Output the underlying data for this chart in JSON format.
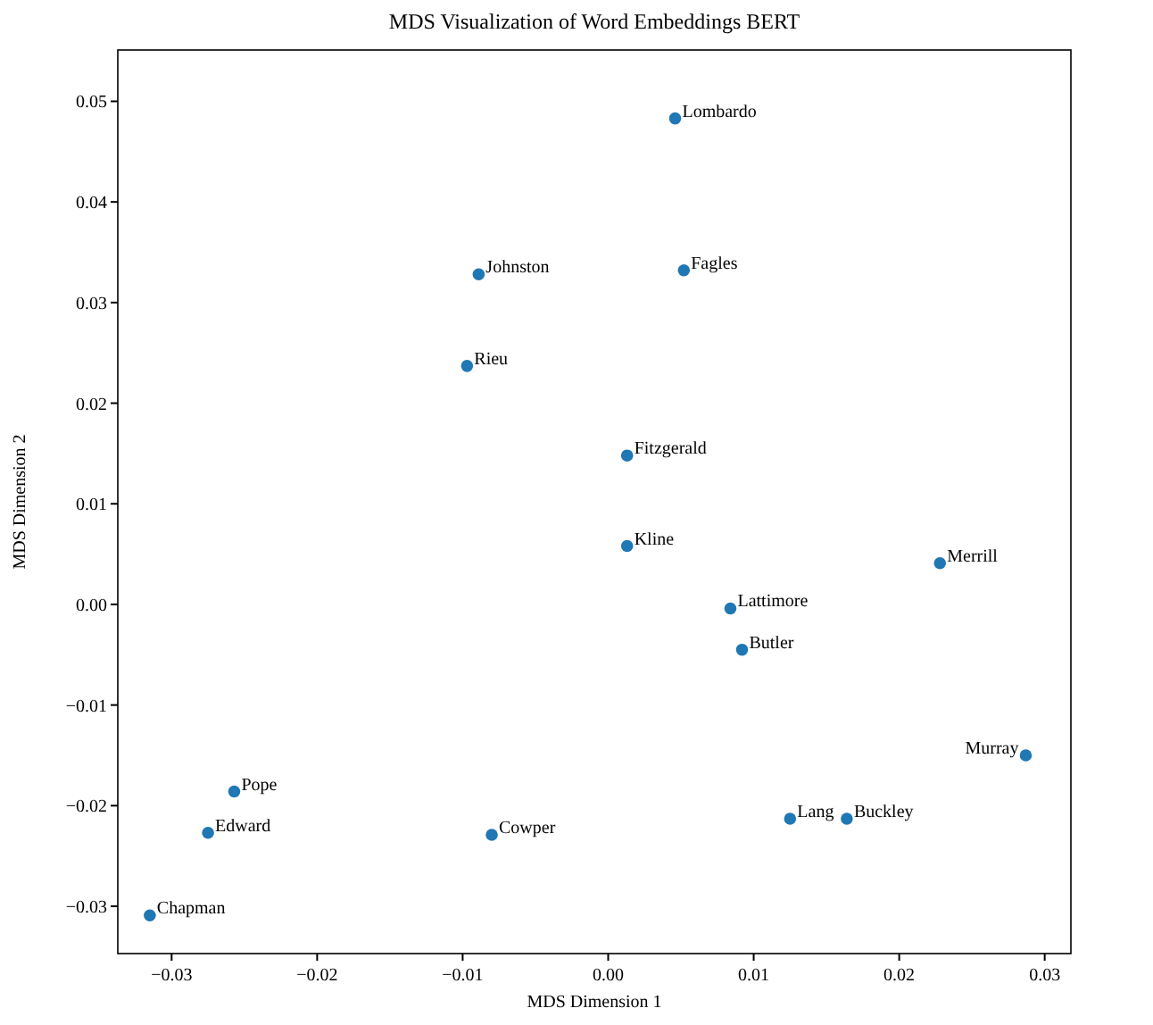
{
  "chart_data": {
    "type": "scatter",
    "title": "MDS Visualization of Word Embeddings BERT",
    "xlabel": "MDS Dimension 1",
    "ylabel": "MDS Dimension 2",
    "x": [
      0.0046,
      -0.0089,
      0.0052,
      -0.0097,
      0.0013,
      0.0013,
      0.0228,
      0.0084,
      0.0092,
      0.0287,
      -0.0257,
      -0.0275,
      -0.008,
      0.0125,
      0.0164,
      -0.0315
    ],
    "series": [
      {
        "color": "#1f77b4",
        "values": [
          0.0483,
          0.0328,
          0.0332,
          0.0237,
          0.0148,
          0.0058,
          0.0041,
          -0.0004,
          -0.0045,
          -0.015,
          -0.0186,
          -0.0227,
          -0.0229,
          -0.0213,
          -0.0213,
          -0.0309
        ]
      }
    ],
    "annotations": [
      {
        "text": "Lombardo",
        "x": 0.0046,
        "y": 0.0483
      },
      {
        "text": "Johnston",
        "x": -0.0089,
        "y": 0.0328
      },
      {
        "text": "Fagles",
        "x": 0.0052,
        "y": 0.0332
      },
      {
        "text": "Rieu",
        "x": -0.0097,
        "y": 0.0237
      },
      {
        "text": "Fitzgerald",
        "x": 0.0013,
        "y": 0.0148
      },
      {
        "text": "Kline",
        "x": 0.0013,
        "y": 0.0058
      },
      {
        "text": "Merrill",
        "x": 0.0228,
        "y": 0.0041
      },
      {
        "text": "Lattimore",
        "x": 0.0084,
        "y": -0.0004
      },
      {
        "text": "Butler",
        "x": 0.0092,
        "y": -0.0045
      },
      {
        "text": "Murray",
        "x": 0.0287,
        "y": -0.015
      },
      {
        "text": "Pope",
        "x": -0.0257,
        "y": -0.0186
      },
      {
        "text": "Edward",
        "x": -0.0275,
        "y": -0.0227
      },
      {
        "text": "Cowper",
        "x": -0.008,
        "y": -0.0229
      },
      {
        "text": "Lang",
        "x": 0.0125,
        "y": -0.0213
      },
      {
        "text": "Buckley",
        "x": 0.0164,
        "y": -0.0213
      },
      {
        "text": "Chapman",
        "x": -0.0315,
        "y": -0.0309
      }
    ],
    "xlim": [
      -0.0337,
      0.0318
    ],
    "ylim": [
      -0.0347,
      0.0551
    ],
    "xticks": [
      {
        "value": -0.03,
        "label": "−0.03"
      },
      {
        "value": -0.02,
        "label": "−0.02"
      },
      {
        "value": -0.01,
        "label": "−0.01"
      },
      {
        "value": 0,
        "label": "0.00"
      },
      {
        "value": 0.01,
        "label": "0.01"
      },
      {
        "value": 0.02,
        "label": "0.02"
      },
      {
        "value": 0.03,
        "label": "0.03"
      }
    ],
    "yticks": [
      {
        "value": -0.03,
        "label": "−0.03"
      },
      {
        "value": -0.02,
        "label": "−0.02"
      },
      {
        "value": -0.01,
        "label": "−0.01"
      },
      {
        "value": 0,
        "label": "0.00"
      },
      {
        "value": 0.01,
        "label": "0.01"
      },
      {
        "value": 0.02,
        "label": "0.02"
      },
      {
        "value": 0.03,
        "label": "0.03"
      },
      {
        "value": 0.04,
        "label": "0.04"
      },
      {
        "value": 0.05,
        "label": "0.05"
      }
    ],
    "marker": "circle",
    "grid": false
  }
}
